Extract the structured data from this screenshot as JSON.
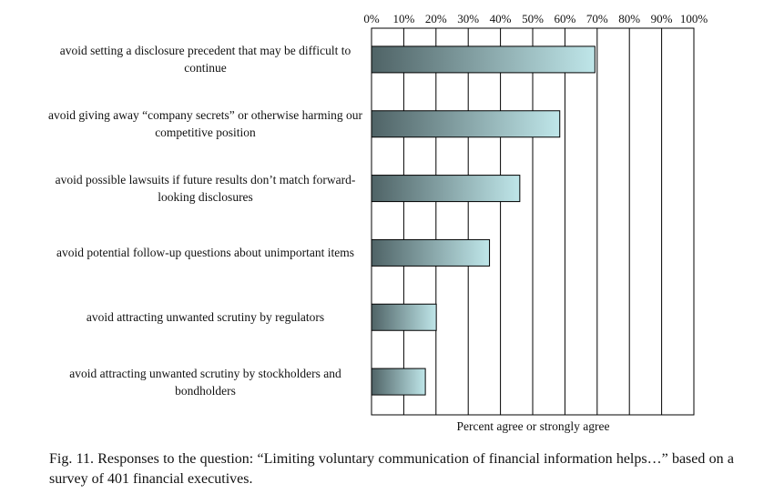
{
  "chart_data": {
    "type": "bar",
    "orientation": "horizontal",
    "categories": [
      "avoid setting a disclosure precedent that may be difficult to continue",
      "avoid giving away “company secrets” or otherwise harming our competitive position",
      "avoid possible lawsuits if future results don’t match forward-looking disclosures",
      "avoid potential follow-up questions about unimportant items",
      "avoid attracting unwanted scrutiny by regulators",
      "avoid attracting unwanted scrutiny by stockholders and bondholders"
    ],
    "values": [
      69.3,
      58.4,
      46.0,
      36.6,
      20.1,
      16.7
    ],
    "xlabel": "Percent agree or strongly agree",
    "xlim": [
      0,
      100
    ],
    "xticks": [
      "0%",
      "10%",
      "20%",
      "30%",
      "40%",
      "50%",
      "60%",
      "70%",
      "80%",
      "90%",
      "100%"
    ],
    "tick_position": "top",
    "grid": true,
    "bar_gradient": [
      "#4f6366",
      "#bfe6e9"
    ]
  },
  "caption": "Fig. 11. Responses to the question: “Limiting voluntary communication of financial information helps…” based on a survey of 401 financial executives."
}
